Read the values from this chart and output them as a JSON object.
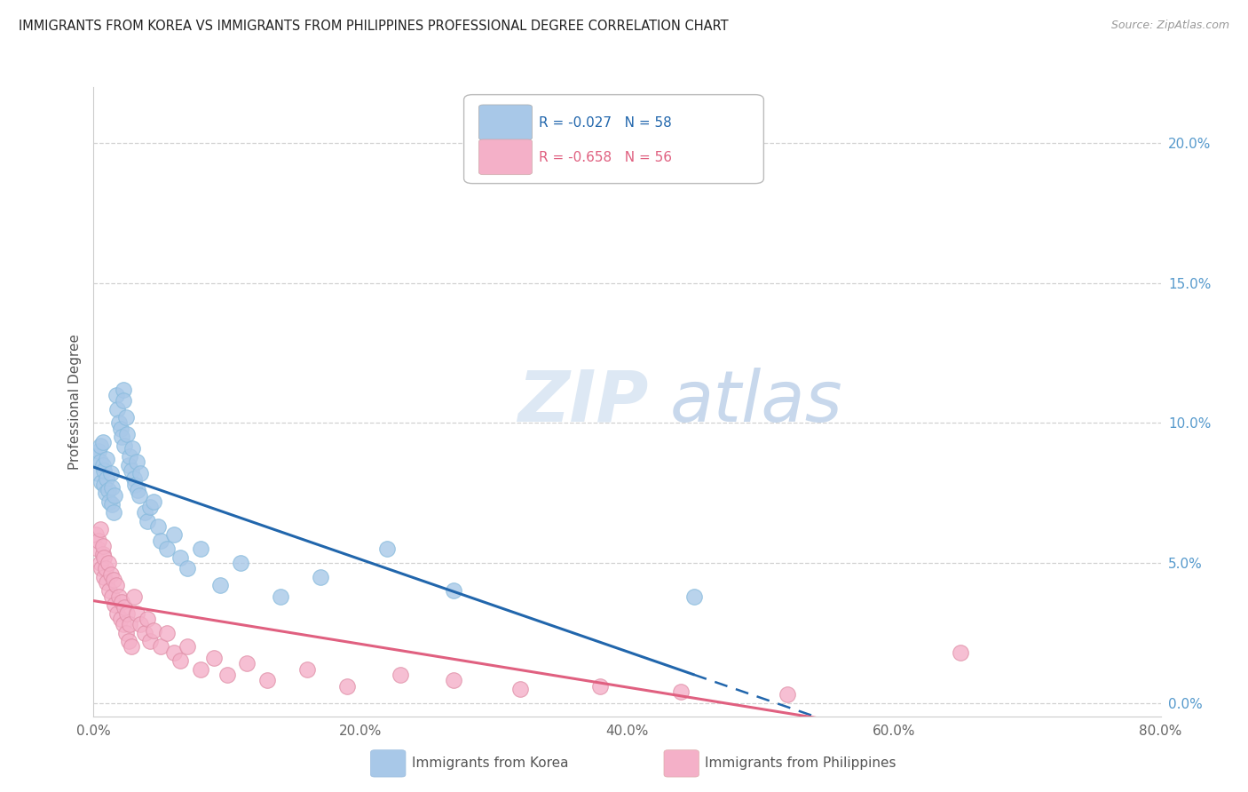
{
  "title": "IMMIGRANTS FROM KOREA VS IMMIGRANTS FROM PHILIPPINES PROFESSIONAL DEGREE CORRELATION CHART",
  "source": "Source: ZipAtlas.com",
  "ylabel": "Professional Degree",
  "korea_R": -0.027,
  "korea_N": 58,
  "philippines_R": -0.658,
  "philippines_N": 56,
  "korea_color": "#a8c8e8",
  "philippines_color": "#f4b0c8",
  "korea_line_color": "#2166ac",
  "philippines_line_color": "#e06080",
  "watermark_zip": "ZIP",
  "watermark_atlas": "atlas",
  "watermark_color": "#dde8f4",
  "background_color": "#ffffff",
  "grid_color": "#cccccc",
  "right_axis_color": "#5599cc",
  "title_color": "#222222",
  "legend_label_korea": "Immigrants from Korea",
  "legend_label_philippines": "Immigrants from Philippines",
  "xlim": [
    0.0,
    0.8
  ],
  "ylim": [
    -0.005,
    0.22
  ],
  "xticks": [
    0.0,
    0.2,
    0.4,
    0.6,
    0.8
  ],
  "xticklabels": [
    "0.0%",
    "20.0%",
    "40.0%",
    "60.0%",
    "80.0%"
  ],
  "right_yticks": [
    0.0,
    0.05,
    0.1,
    0.15,
    0.2
  ],
  "right_yticklabels": [
    "0.0%",
    "5.0%",
    "10.0%",
    "15.0%",
    "20.0%"
  ],
  "korea_x": [
    0.002,
    0.003,
    0.004,
    0.005,
    0.005,
    0.006,
    0.007,
    0.007,
    0.008,
    0.008,
    0.009,
    0.01,
    0.01,
    0.011,
    0.012,
    0.013,
    0.014,
    0.014,
    0.015,
    0.016,
    0.017,
    0.018,
    0.019,
    0.02,
    0.021,
    0.022,
    0.022,
    0.023,
    0.024,
    0.025,
    0.026,
    0.027,
    0.028,
    0.029,
    0.03,
    0.031,
    0.032,
    0.033,
    0.034,
    0.035,
    0.038,
    0.04,
    0.042,
    0.045,
    0.048,
    0.05,
    0.055,
    0.06,
    0.065,
    0.07,
    0.08,
    0.095,
    0.11,
    0.14,
    0.17,
    0.22,
    0.27,
    0.45
  ],
  "korea_y": [
    0.088,
    0.082,
    0.09,
    0.086,
    0.092,
    0.079,
    0.085,
    0.093,
    0.078,
    0.083,
    0.075,
    0.08,
    0.087,
    0.076,
    0.072,
    0.082,
    0.071,
    0.077,
    0.068,
    0.074,
    0.11,
    0.105,
    0.1,
    0.098,
    0.095,
    0.112,
    0.108,
    0.092,
    0.102,
    0.096,
    0.085,
    0.088,
    0.083,
    0.091,
    0.08,
    0.078,
    0.086,
    0.076,
    0.074,
    0.082,
    0.068,
    0.065,
    0.07,
    0.072,
    0.063,
    0.058,
    0.055,
    0.06,
    0.052,
    0.048,
    0.055,
    0.042,
    0.05,
    0.038,
    0.045,
    0.055,
    0.04,
    0.038
  ],
  "philippines_x": [
    0.002,
    0.003,
    0.004,
    0.005,
    0.005,
    0.006,
    0.007,
    0.007,
    0.008,
    0.008,
    0.009,
    0.01,
    0.011,
    0.012,
    0.013,
    0.014,
    0.015,
    0.016,
    0.017,
    0.018,
    0.019,
    0.02,
    0.021,
    0.022,
    0.023,
    0.024,
    0.025,
    0.026,
    0.027,
    0.028,
    0.03,
    0.032,
    0.035,
    0.038,
    0.04,
    0.042,
    0.045,
    0.05,
    0.055,
    0.06,
    0.065,
    0.07,
    0.08,
    0.09,
    0.1,
    0.115,
    0.13,
    0.16,
    0.19,
    0.23,
    0.27,
    0.32,
    0.38,
    0.44,
    0.52,
    0.65
  ],
  "philippines_y": [
    0.06,
    0.055,
    0.058,
    0.05,
    0.062,
    0.048,
    0.053,
    0.056,
    0.045,
    0.052,
    0.048,
    0.043,
    0.05,
    0.04,
    0.046,
    0.038,
    0.044,
    0.035,
    0.042,
    0.032,
    0.038,
    0.03,
    0.036,
    0.028,
    0.034,
    0.025,
    0.032,
    0.022,
    0.028,
    0.02,
    0.038,
    0.032,
    0.028,
    0.025,
    0.03,
    0.022,
    0.026,
    0.02,
    0.025,
    0.018,
    0.015,
    0.02,
    0.012,
    0.016,
    0.01,
    0.014,
    0.008,
    0.012,
    0.006,
    0.01,
    0.008,
    0.005,
    0.006,
    0.004,
    0.003,
    0.018
  ]
}
